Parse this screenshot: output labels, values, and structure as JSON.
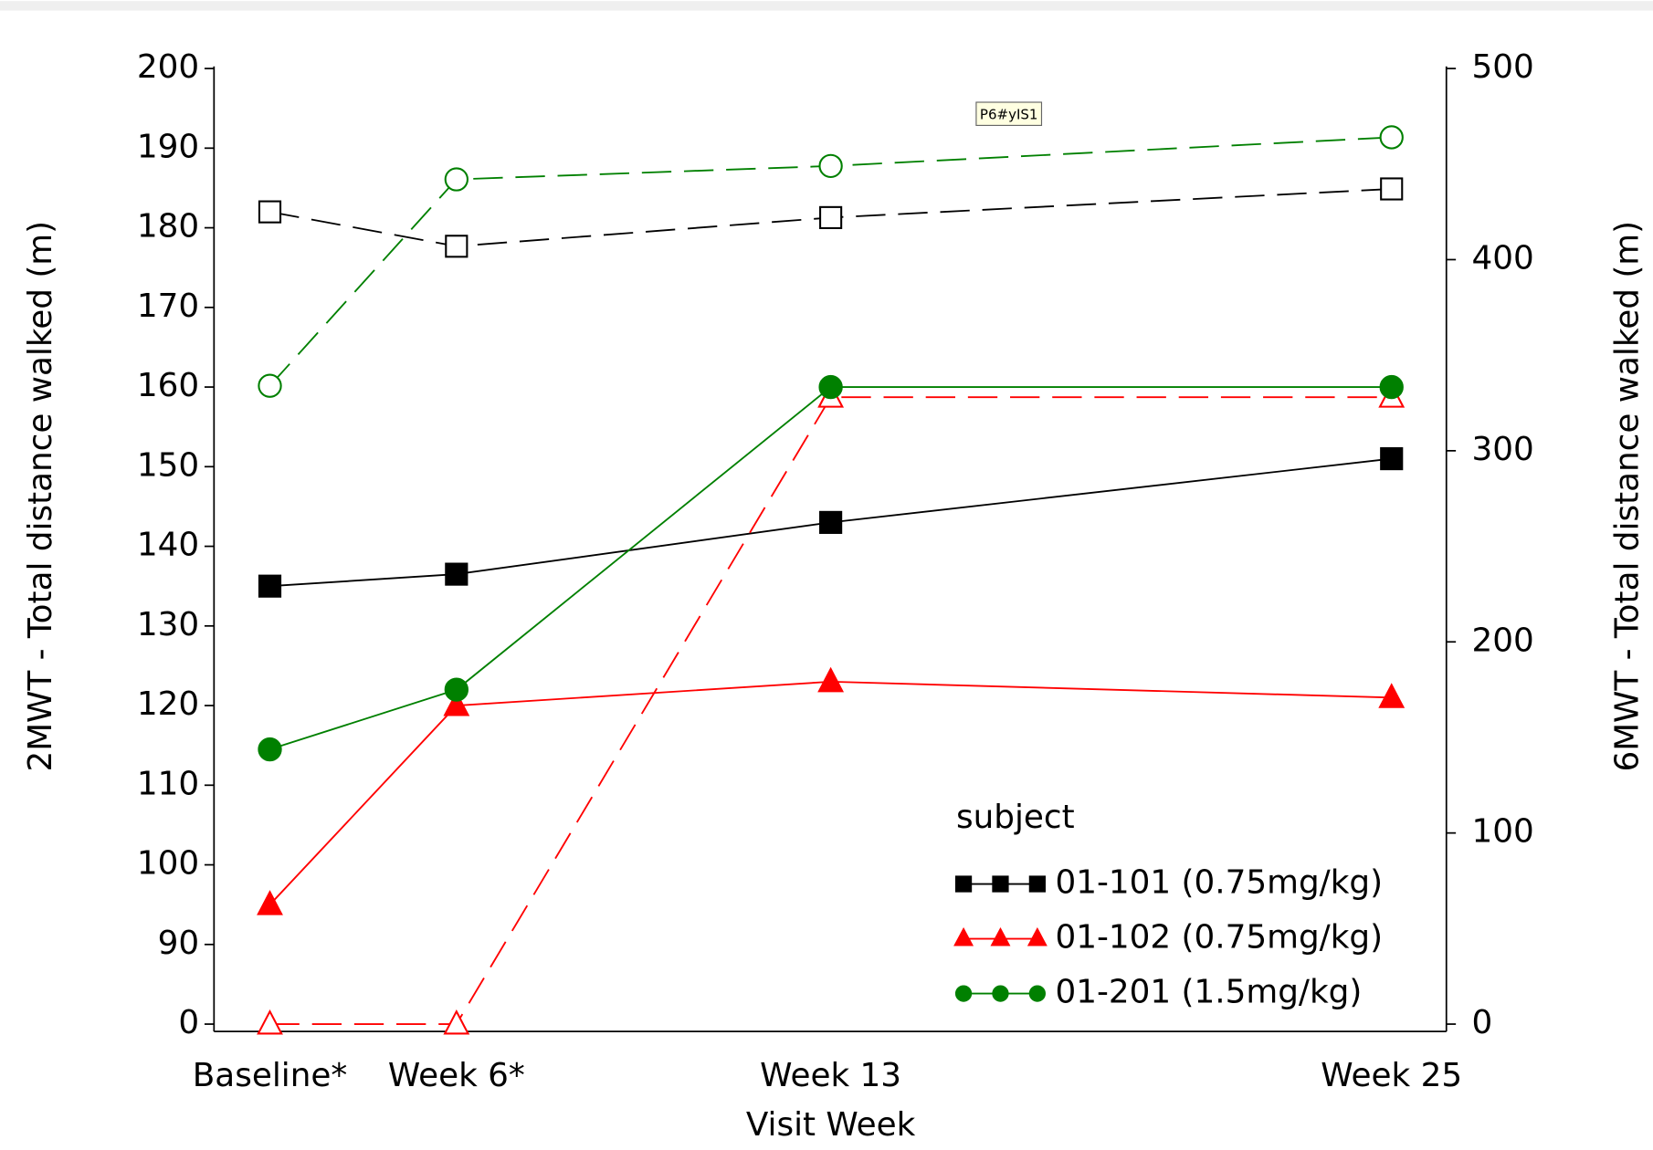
{
  "chart_data": {
    "type": "line",
    "xlabel": "Visit Week",
    "ylabel": "2MWT - Total distance walked (m)",
    "y2label": "6MWT - Total distance walked (m)",
    "categories": [
      "Baseline*",
      "Week 6*",
      "Week 13",
      "Week 25"
    ],
    "ylim": [
      80,
      200
    ],
    "yticks": [
      {
        "value": 80,
        "label": "0"
      },
      90,
      100,
      110,
      120,
      130,
      140,
      150,
      160,
      170,
      180,
      190,
      200
    ],
    "y2lim": [
      0,
      500
    ],
    "y2ticks": [
      0,
      100,
      200,
      300,
      400,
      500
    ],
    "legend_title": "subject",
    "legend_position": "lower right",
    "annotation": "P6#yIS1",
    "series": [
      {
        "name": "01-101 (0.75mg/kg)",
        "color": "#000000",
        "marker": "square",
        "values": [
          135,
          136.5,
          143,
          151
        ],
        "y2values": [
          425,
          407,
          422,
          437
        ]
      },
      {
        "name": "01-102 (0.75mg/kg)",
        "color": "#ff0000",
        "marker": "triangle",
        "values": [
          95,
          120,
          123,
          121
        ],
        "y2values": [
          0,
          0,
          328,
          328
        ]
      },
      {
        "name": "01-201 (1.5mg/kg)",
        "color": "#008000",
        "marker": "circle",
        "values": [
          114.5,
          122,
          160,
          160
        ],
        "y2values": [
          334,
          442,
          449,
          464
        ]
      }
    ]
  }
}
